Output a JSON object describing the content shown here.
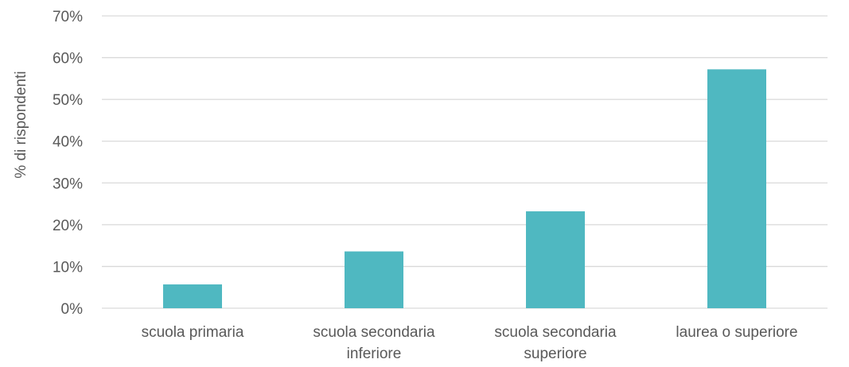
{
  "chart_data": {
    "type": "bar",
    "title": "",
    "xlabel": "",
    "ylabel": "% di rispondenti",
    "categories": [
      [
        "scuola primaria"
      ],
      [
        "scuola secondaria",
        "inferiore"
      ],
      [
        "scuola secondaria",
        "superiore"
      ],
      [
        "laurea o superiore"
      ]
    ],
    "values": [
      0.057,
      0.136,
      0.232,
      0.572
    ],
    "ylim": [
      0,
      0.7
    ],
    "yticks": [
      0,
      0.1,
      0.2,
      0.3,
      0.4,
      0.5,
      0.6,
      0.7
    ],
    "ytick_labels": [
      "0%",
      "10%",
      "20%",
      "30%",
      "40%",
      "50%",
      "60%",
      "70%"
    ],
    "bar_color": "#4fb8c1",
    "grid": true,
    "legend": "none"
  }
}
